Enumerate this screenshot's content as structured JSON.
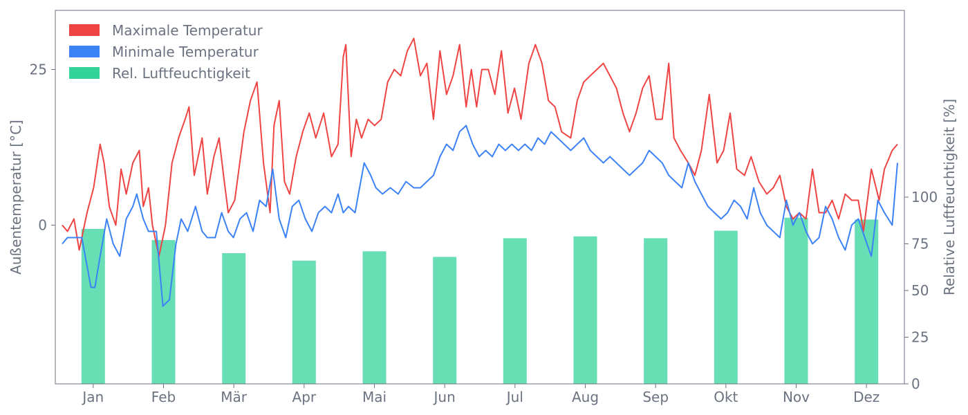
{
  "chart_data": {
    "type": "line",
    "y_left_label": "Außentemperatur [°C]",
    "y_right_label": "Relative Luftfeuchtigkeit [%]",
    "y_left_ticks": [
      0,
      25
    ],
    "y_left_range": [
      -25.5,
      34.5
    ],
    "y_right_ticks": [
      0,
      25,
      50,
      75,
      100
    ],
    "y_right_range": [
      0,
      200
    ],
    "months": [
      "Jan",
      "Feb",
      "Mär",
      "Apr",
      "Mai",
      "Jun",
      "Jul",
      "Aug",
      "Sep",
      "Okt",
      "Nov",
      "Dez"
    ],
    "legend_position": "top-left",
    "series": [
      {
        "name": "Maximale Temperatur",
        "color": "#ef4444",
        "type": "line"
      },
      {
        "name": "Minimale Temperatur",
        "color": "#3b82f6",
        "type": "line"
      },
      {
        "name": "Rel. Luftfeuchtigkeit",
        "color": "#34d399",
        "type": "bar"
      }
    ],
    "humidity_monthly": [
      83,
      77,
      70,
      66,
      71,
      68,
      78,
      79,
      78,
      82,
      89,
      88
    ],
    "tmax_anchors": [
      [
        1,
        0
      ],
      [
        5,
        -1
      ],
      [
        10,
        1
      ],
      [
        14,
        -4
      ],
      [
        20,
        2
      ],
      [
        25,
        6
      ],
      [
        30,
        13
      ],
      [
        33,
        10
      ],
      [
        37,
        3
      ],
      [
        42,
        0
      ],
      [
        46,
        9
      ],
      [
        50,
        5
      ],
      [
        55,
        10
      ],
      [
        60,
        12
      ],
      [
        63,
        3
      ],
      [
        67,
        6
      ],
      [
        70,
        0
      ],
      [
        75,
        -5
      ],
      [
        80,
        0
      ],
      [
        85,
        10
      ],
      [
        90,
        14
      ],
      [
        95,
        17
      ],
      [
        98,
        19
      ],
      [
        102,
        8
      ],
      [
        108,
        14
      ],
      [
        112,
        5
      ],
      [
        117,
        11
      ],
      [
        121,
        14
      ],
      [
        125,
        7
      ],
      [
        128,
        2
      ],
      [
        133,
        4
      ],
      [
        140,
        15
      ],
      [
        145,
        20
      ],
      [
        150,
        23
      ],
      [
        155,
        10
      ],
      [
        160,
        2
      ],
      [
        163,
        16
      ],
      [
        167,
        20
      ],
      [
        171,
        7
      ],
      [
        175,
        5
      ],
      [
        180,
        11
      ],
      [
        185,
        15
      ],
      [
        190,
        18
      ],
      [
        195,
        14
      ],
      [
        201,
        18
      ],
      [
        207,
        11
      ],
      [
        212,
        13
      ],
      [
        216,
        27
      ],
      [
        218,
        29
      ],
      [
        222,
        11
      ],
      [
        226,
        17
      ],
      [
        230,
        14
      ],
      [
        235,
        17
      ],
      [
        240,
        16
      ],
      [
        245,
        17
      ],
      [
        250,
        23
      ],
      [
        255,
        25
      ],
      [
        260,
        24
      ],
      [
        265,
        28
      ],
      [
        270,
        30
      ],
      [
        275,
        24
      ],
      [
        280,
        26
      ],
      [
        285,
        17
      ],
      [
        290,
        28
      ],
      [
        295,
        21
      ],
      [
        300,
        24
      ],
      [
        305,
        29
      ],
      [
        310,
        19
      ],
      [
        314,
        25
      ],
      [
        318,
        19
      ],
      [
        322,
        25
      ],
      [
        327,
        25
      ],
      [
        332,
        21
      ],
      [
        337,
        28
      ],
      [
        342,
        18
      ],
      [
        347,
        22
      ],
      [
        352,
        17
      ],
      [
        358,
        26
      ],
      [
        363,
        29
      ],
      [
        368,
        26
      ],
      [
        373,
        20
      ],
      [
        378,
        19
      ],
      [
        383,
        15
      ],
      [
        390,
        14
      ],
      [
        395,
        20
      ],
      [
        400,
        23
      ],
      [
        405,
        24
      ],
      [
        410,
        25
      ],
      [
        415,
        26
      ],
      [
        420,
        24
      ],
      [
        425,
        22
      ],
      [
        430,
        18
      ],
      [
        435,
        15
      ],
      [
        440,
        18
      ],
      [
        445,
        22
      ],
      [
        450,
        24
      ],
      [
        455,
        17
      ],
      [
        460,
        17
      ],
      [
        465,
        26
      ],
      [
        469,
        14
      ],
      [
        474,
        12
      ],
      [
        480,
        10
      ],
      [
        485,
        8
      ],
      [
        490,
        12
      ],
      [
        496,
        21
      ],
      [
        502,
        10
      ],
      [
        507,
        12
      ],
      [
        512,
        18
      ],
      [
        517,
        9
      ],
      [
        523,
        8
      ],
      [
        528,
        11
      ],
      [
        534,
        7
      ],
      [
        540,
        5
      ],
      [
        545,
        6
      ],
      [
        550,
        8
      ],
      [
        555,
        3
      ],
      [
        560,
        1
      ],
      [
        565,
        2
      ],
      [
        570,
        1
      ],
      [
        575,
        9
      ],
      [
        580,
        2
      ],
      [
        585,
        2
      ],
      [
        590,
        4
      ],
      [
        595,
        1
      ],
      [
        600,
        5
      ],
      [
        605,
        4
      ],
      [
        610,
        4
      ],
      [
        614,
        -1
      ],
      [
        620,
        9
      ],
      [
        626,
        4
      ],
      [
        630,
        9
      ],
      [
        636,
        12
      ],
      [
        640,
        13
      ]
    ],
    "tmin_anchors": [
      [
        1,
        -3
      ],
      [
        5,
        -2
      ],
      [
        10,
        -2
      ],
      [
        16,
        -2
      ],
      [
        23,
        -10
      ],
      [
        26,
        -10
      ],
      [
        30,
        -5
      ],
      [
        35,
        1
      ],
      [
        40,
        -3
      ],
      [
        45,
        -5
      ],
      [
        50,
        1
      ],
      [
        55,
        3
      ],
      [
        58,
        5
      ],
      [
        63,
        1
      ],
      [
        67,
        -1
      ],
      [
        73,
        -1
      ],
      [
        78,
        -13
      ],
      [
        83,
        -12
      ],
      [
        88,
        -3
      ],
      [
        92,
        1
      ],
      [
        97,
        -1
      ],
      [
        103,
        3
      ],
      [
        108,
        -1
      ],
      [
        112,
        -2
      ],
      [
        118,
        -2
      ],
      [
        123,
        2
      ],
      [
        128,
        -1
      ],
      [
        132,
        -2
      ],
      [
        137,
        1
      ],
      [
        142,
        2
      ],
      [
        147,
        -1
      ],
      [
        152,
        4
      ],
      [
        157,
        3
      ],
      [
        162,
        9
      ],
      [
        167,
        1
      ],
      [
        172,
        -2
      ],
      [
        177,
        3
      ],
      [
        182,
        4
      ],
      [
        187,
        1
      ],
      [
        192,
        -1
      ],
      [
        197,
        2
      ],
      [
        202,
        3
      ],
      [
        207,
        2
      ],
      [
        212,
        5
      ],
      [
        216,
        2
      ],
      [
        220,
        3
      ],
      [
        225,
        2
      ],
      [
        232,
        10
      ],
      [
        237,
        8
      ],
      [
        241,
        6
      ],
      [
        246,
        5
      ],
      [
        252,
        6
      ],
      [
        258,
        5
      ],
      [
        264,
        7
      ],
      [
        270,
        6
      ],
      [
        275,
        6
      ],
      [
        280,
        7
      ],
      [
        285,
        8
      ],
      [
        290,
        11
      ],
      [
        295,
        13
      ],
      [
        300,
        12
      ],
      [
        305,
        15
      ],
      [
        310,
        16
      ],
      [
        315,
        13
      ],
      [
        320,
        11
      ],
      [
        325,
        12
      ],
      [
        330,
        11
      ],
      [
        335,
        13
      ],
      [
        340,
        12
      ],
      [
        345,
        13
      ],
      [
        350,
        12
      ],
      [
        355,
        13
      ],
      [
        360,
        12
      ],
      [
        365,
        14
      ],
      [
        370,
        13
      ],
      [
        375,
        15
      ],
      [
        380,
        14
      ],
      [
        385,
        13
      ],
      [
        390,
        12
      ],
      [
        395,
        13
      ],
      [
        400,
        14
      ],
      [
        405,
        12
      ],
      [
        410,
        11
      ],
      [
        415,
        10
      ],
      [
        420,
        11
      ],
      [
        425,
        10
      ],
      [
        430,
        9
      ],
      [
        435,
        8
      ],
      [
        440,
        9
      ],
      [
        445,
        10
      ],
      [
        450,
        12
      ],
      [
        455,
        11
      ],
      [
        460,
        10
      ],
      [
        465,
        8
      ],
      [
        470,
        7
      ],
      [
        475,
        6
      ],
      [
        480,
        10
      ],
      [
        485,
        7
      ],
      [
        490,
        5
      ],
      [
        495,
        3
      ],
      [
        500,
        2
      ],
      [
        505,
        1
      ],
      [
        510,
        2
      ],
      [
        515,
        4
      ],
      [
        520,
        3
      ],
      [
        525,
        1
      ],
      [
        530,
        6
      ],
      [
        535,
        2
      ],
      [
        540,
        0
      ],
      [
        545,
        -1
      ],
      [
        550,
        -2
      ],
      [
        555,
        4
      ],
      [
        560,
        0
      ],
      [
        565,
        2
      ],
      [
        570,
        -1
      ],
      [
        575,
        -3
      ],
      [
        580,
        -2
      ],
      [
        585,
        3
      ],
      [
        590,
        1
      ],
      [
        595,
        -2
      ],
      [
        600,
        -4
      ],
      [
        605,
        0
      ],
      [
        610,
        1
      ],
      [
        615,
        -2
      ],
      [
        620,
        -5
      ],
      [
        625,
        4
      ],
      [
        630,
        2
      ],
      [
        636,
        0
      ],
      [
        640,
        10
      ]
    ]
  }
}
